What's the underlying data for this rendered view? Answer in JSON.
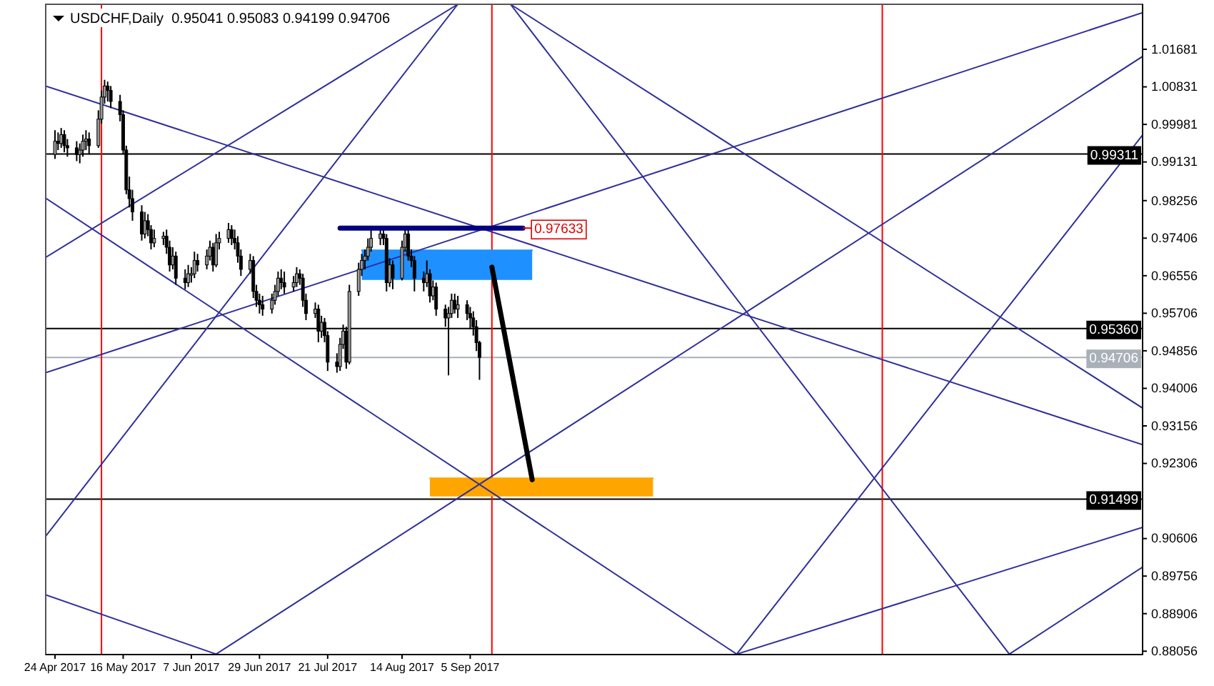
{
  "chart_data": {
    "type": "candlestick",
    "title": "USDCHF,Daily  0.95041 0.95083 0.94199 0.94706",
    "xlim": [
      "2017-04-21",
      "2018-04-10"
    ],
    "xticks": [
      {
        "value": "2017-04-24",
        "label": "24 Apr 2017"
      },
      {
        "value": "2017-05-16",
        "label": "16 May 2017"
      },
      {
        "value": "2017-06-07",
        "label": "7 Jun 2017"
      },
      {
        "value": "2017-06-29",
        "label": "29 Jun 2017"
      },
      {
        "value": "2017-07-21",
        "label": "21 Jul 2017"
      },
      {
        "value": "2017-08-14",
        "label": "14 Aug 2017"
      },
      {
        "value": "2017-09-05",
        "label": "5 Sep 2017"
      }
    ],
    "ylim": [
      0.8798,
      1.027
    ],
    "yticks": [
      1.01681,
      1.00831,
      0.99981,
      0.99131,
      0.98256,
      0.97406,
      0.96556,
      0.95706,
      0.94856,
      0.94006,
      0.93156,
      0.92306,
      0.90606,
      0.89756,
      0.88906,
      0.88056
    ],
    "ref_lines": [
      {
        "axis": "y",
        "value": 0.99311,
        "label": "0.99311",
        "color": "#000000"
      },
      {
        "axis": "y",
        "value": 0.9536,
        "label": "0.95360",
        "color": "#000000"
      },
      {
        "axis": "y",
        "value": 0.94706,
        "label": "0.94706",
        "color": "#a9b0b8"
      },
      {
        "axis": "y",
        "value": 0.91499,
        "label": "0.91499",
        "color": "#000000"
      },
      {
        "axis": "x",
        "value": "2017-05-09",
        "label": null,
        "color": "#ff0000"
      },
      {
        "axis": "x",
        "value": "2017-09-12",
        "label": null,
        "color": "#ff0000"
      },
      {
        "axis": "x",
        "value": "2018-01-16",
        "label": null,
        "color": "#ff0000"
      }
    ],
    "annotations": [
      {
        "text": "0.97633",
        "x": "2017-09-22",
        "y": 0.97633
      }
    ],
    "series": [
      {
        "type": "line",
        "color": "#1e90ff",
        "x": [
          "2017-08-01",
          "2017-09-25"
        ],
        "values": [
          0.9713,
          0.9713
        ],
        "lower": [
          0.9646,
          0.9646
        ],
        "upper": [
          0.9713,
          0.9713
        ]
      },
      {
        "type": "line",
        "color": "#ffa500",
        "x": [
          "2017-08-23",
          "2017-11-03"
        ],
        "values": [
          0.9197,
          0.9197
        ],
        "lower": [
          0.9156,
          0.9156
        ],
        "upper": [
          0.9197,
          0.9197
        ]
      },
      {
        "type": "line",
        "color": "#30309a",
        "x": [
          "2017-04-21",
          "2018-04-10"
        ],
        "values": [
          1.0085,
          0.9273
        ]
      },
      {
        "type": "line",
        "color": "#30309a",
        "x": [
          "2017-04-21",
          "2017-11-30"
        ],
        "values": [
          0.9831,
          0.8799
        ]
      },
      {
        "type": "line",
        "color": "#30309a",
        "x": [
          "2017-04-21",
          "2017-09-01"
        ],
        "values": [
          0.9697,
          1.027
        ]
      },
      {
        "type": "line",
        "color": "#30309a",
        "x": [
          "2017-04-21",
          "2018-04-10"
        ],
        "values": [
          0.9436,
          1.0251
        ]
      },
      {
        "type": "line",
        "color": "#30309a",
        "x": [
          "2017-04-21",
          "2017-09-01"
        ],
        "values": [
          0.9066,
          1.027
        ]
      },
      {
        "type": "line",
        "color": "#30309a",
        "x": [
          "2017-09-18",
          "2018-02-26"
        ],
        "values": [
          1.027,
          0.8799
        ]
      },
      {
        "type": "line",
        "color": "#30309a",
        "x": [
          "2017-09-18",
          "2018-04-10"
        ],
        "values": [
          1.027,
          0.9356
        ]
      },
      {
        "type": "line",
        "color": "#30309a",
        "x": [
          "2017-06-15",
          "2018-04-10"
        ],
        "values": [
          0.8799,
          1.0152
        ]
      },
      {
        "type": "line",
        "color": "#30309a",
        "x": [
          "2017-11-30",
          "2018-04-10"
        ],
        "values": [
          0.8799,
          0.9974
        ]
      },
      {
        "type": "line",
        "color": "#30309a",
        "x": [
          "2017-11-30",
          "2018-04-10"
        ],
        "values": [
          0.8799,
          0.9086
        ]
      },
      {
        "type": "line",
        "color": "#30309a",
        "x": [
          "2018-02-26",
          "2018-04-10"
        ],
        "values": [
          0.8799,
          0.8996
        ]
      },
      {
        "type": "line",
        "color": "#30309a",
        "x": [
          "2017-04-21",
          "2017-06-15"
        ],
        "values": [
          0.8933,
          0.8799
        ]
      },
      {
        "color": "#000000",
        "x": [
          "2017-04-24",
          "2017-04-25",
          "2017-04-26",
          "2017-04-27",
          "2017-04-28",
          "2017-05-01",
          "2017-05-02",
          "2017-05-03",
          "2017-05-04",
          "2017-05-05",
          "2017-05-08",
          "2017-05-09",
          "2017-05-10",
          "2017-05-11",
          "2017-05-12",
          "2017-05-15",
          "2017-05-16",
          "2017-05-17",
          "2017-05-18",
          "2017-05-19",
          "2017-05-22",
          "2017-05-23",
          "2017-05-24",
          "2017-05-25",
          "2017-05-26",
          "2017-05-29",
          "2017-05-30",
          "2017-05-31",
          "2017-06-01",
          "2017-06-02",
          "2017-06-05",
          "2017-06-06",
          "2017-06-07",
          "2017-06-08",
          "2017-06-09",
          "2017-06-12",
          "2017-06-13",
          "2017-06-14",
          "2017-06-15",
          "2017-06-16",
          "2017-06-19",
          "2017-06-20",
          "2017-06-21",
          "2017-06-22",
          "2017-06-23",
          "2017-06-26",
          "2017-06-27",
          "2017-06-28",
          "2017-06-29",
          "2017-06-30",
          "2017-07-03",
          "2017-07-04",
          "2017-07-05",
          "2017-07-06",
          "2017-07-07",
          "2017-07-10",
          "2017-07-11",
          "2017-07-12",
          "2017-07-13",
          "2017-07-14",
          "2017-07-17",
          "2017-07-18",
          "2017-07-19",
          "2017-07-20",
          "2017-07-21",
          "2017-07-24",
          "2017-07-25",
          "2017-07-26",
          "2017-07-27",
          "2017-07-28",
          "2017-07-31",
          "2017-08-01",
          "2017-08-02",
          "2017-08-03",
          "2017-08-04",
          "2017-08-07",
          "2017-08-08",
          "2017-08-09",
          "2017-08-10",
          "2017-08-11",
          "2017-08-14",
          "2017-08-15",
          "2017-08-16",
          "2017-08-17",
          "2017-08-18",
          "2017-08-21",
          "2017-08-22",
          "2017-08-23",
          "2017-08-24",
          "2017-08-25",
          "2017-08-28",
          "2017-08-29",
          "2017-08-30",
          "2017-08-31",
          "2017-09-01",
          "2017-09-04",
          "2017-09-05",
          "2017-09-06",
          "2017-09-07",
          "2017-09-08"
        ],
        "ohlc": [
          [
            0.993,
            0.9985,
            0.992,
            0.996
          ],
          [
            0.996,
            0.998,
            0.994,
            0.9955
          ],
          [
            0.9955,
            0.999,
            0.9945,
            0.9975
          ],
          [
            0.9975,
            0.9985,
            0.9935,
            0.995
          ],
          [
            0.995,
            0.9965,
            0.9925,
            0.9945
          ],
          [
            0.9945,
            0.996,
            0.9915,
            0.993
          ],
          [
            0.993,
            0.9955,
            0.991,
            0.994
          ],
          [
            0.994,
            0.9975,
            0.9925,
            0.996
          ],
          [
            0.996,
            0.9985,
            0.994,
            0.9965
          ],
          [
            0.9965,
            0.998,
            0.993,
            0.995
          ],
          [
            0.995,
            1.003,
            0.9945,
            1.001
          ],
          [
            1.001,
            1.0075,
            1.0,
            1.006
          ],
          [
            1.006,
            1.0099,
            1.0045,
            1.0085
          ],
          [
            1.0085,
            1.0095,
            1.005,
            1.0075
          ],
          [
            1.0075,
            1.0085,
            1.0035,
            1.005
          ],
          [
            1.005,
            1.0065,
            1.0005,
            1.002
          ],
          [
            1.002,
            1.003,
            0.993,
            0.994
          ],
          [
            0.994,
            0.995,
            0.984,
            0.985
          ],
          [
            0.985,
            0.988,
            0.981,
            0.983
          ],
          [
            0.983,
            0.985,
            0.978,
            0.98
          ],
          [
            0.98,
            0.9815,
            0.9735,
            0.975
          ],
          [
            0.975,
            0.98,
            0.974,
            0.978
          ],
          [
            0.978,
            0.9795,
            0.9745,
            0.976
          ],
          [
            0.976,
            0.977,
            0.9715,
            0.973
          ],
          [
            0.973,
            0.976,
            0.972,
            0.974
          ],
          [
            0.974,
            0.9755,
            0.9725,
            0.9745
          ],
          [
            0.9745,
            0.976,
            0.9705,
            0.972
          ],
          [
            0.972,
            0.9735,
            0.9665,
            0.968
          ],
          [
            0.968,
            0.972,
            0.967,
            0.97
          ],
          [
            0.97,
            0.971,
            0.9635,
            0.965
          ],
          [
            0.965,
            0.967,
            0.9625,
            0.964
          ],
          [
            0.964,
            0.968,
            0.963,
            0.966
          ],
          [
            0.966,
            0.9675,
            0.964,
            0.966
          ],
          [
            0.966,
            0.971,
            0.965,
            0.969
          ],
          [
            0.969,
            0.9705,
            0.9665,
            0.968
          ],
          [
            0.968,
            0.9715,
            0.967,
            0.97
          ],
          [
            0.97,
            0.9735,
            0.969,
            0.972
          ],
          [
            0.972,
            0.973,
            0.9665,
            0.968
          ],
          [
            0.968,
            0.975,
            0.9675,
            0.973
          ],
          [
            0.973,
            0.9755,
            0.9715,
            0.974
          ],
          [
            0.974,
            0.9775,
            0.973,
            0.976
          ],
          [
            0.976,
            0.977,
            0.9725,
            0.974
          ],
          [
            0.974,
            0.976,
            0.9715,
            0.973
          ],
          [
            0.973,
            0.9745,
            0.9685,
            0.97
          ],
          [
            0.97,
            0.9715,
            0.9655,
            0.967
          ],
          [
            0.967,
            0.9705,
            0.966,
            0.969
          ],
          [
            0.969,
            0.97,
            0.9605,
            0.962
          ],
          [
            0.962,
            0.9635,
            0.9585,
            0.96
          ],
          [
            0.96,
            0.9615,
            0.957,
            0.959
          ],
          [
            0.959,
            0.961,
            0.9565,
            0.958
          ],
          [
            0.958,
            0.9615,
            0.957,
            0.96
          ],
          [
            0.96,
            0.9635,
            0.959,
            0.962
          ],
          [
            0.962,
            0.9665,
            0.961,
            0.965
          ],
          [
            0.965,
            0.967,
            0.9625,
            0.964
          ],
          [
            0.964,
            0.9665,
            0.9615,
            0.963
          ],
          [
            0.963,
            0.9655,
            0.962,
            0.964
          ],
          [
            0.964,
            0.9675,
            0.963,
            0.966
          ],
          [
            0.966,
            0.967,
            0.9635,
            0.965
          ],
          [
            0.965,
            0.966,
            0.9585,
            0.96
          ],
          [
            0.96,
            0.9615,
            0.9555,
            0.957
          ],
          [
            0.957,
            0.9595,
            0.956,
            0.958
          ],
          [
            0.958,
            0.959,
            0.9505,
            0.953
          ],
          [
            0.953,
            0.9565,
            0.9515,
            0.955
          ],
          [
            0.955,
            0.956,
            0.9505,
            0.952
          ],
          [
            0.952,
            0.953,
            0.944,
            0.946
          ],
          [
            0.946,
            0.948,
            0.9436,
            0.945
          ],
          [
            0.945,
            0.9515,
            0.944,
            0.95
          ],
          [
            0.95,
            0.9545,
            0.949,
            0.953
          ],
          [
            0.953,
            0.954,
            0.9445,
            0.946
          ],
          [
            0.946,
            0.9635,
            0.9455,
            0.962
          ],
          [
            0.962,
            0.9685,
            0.961,
            0.967
          ],
          [
            0.967,
            0.9705,
            0.9655,
            0.969
          ],
          [
            0.969,
            0.9715,
            0.967,
            0.97
          ],
          [
            0.97,
            0.974,
            0.969,
            0.972
          ],
          [
            0.972,
            0.9768,
            0.971,
            0.974
          ],
          [
            0.974,
            0.9765,
            0.9725,
            0.975
          ],
          [
            0.975,
            0.9768,
            0.9725,
            0.974
          ],
          [
            0.974,
            0.975,
            0.962,
            0.964
          ],
          [
            0.964,
            0.9695,
            0.963,
            0.968
          ],
          [
            0.968,
            0.969,
            0.9625,
            0.965
          ],
          [
            0.965,
            0.9735,
            0.9645,
            0.972
          ],
          [
            0.972,
            0.9768,
            0.971,
            0.975
          ],
          [
            0.975,
            0.976,
            0.969,
            0.97
          ],
          [
            0.97,
            0.9715,
            0.9675,
            0.969
          ],
          [
            0.969,
            0.97,
            0.962,
            0.965
          ],
          [
            0.965,
            0.9665,
            0.962,
            0.964
          ],
          [
            0.964,
            0.969,
            0.963,
            0.966
          ],
          [
            0.966,
            0.967,
            0.9595,
            0.961
          ],
          [
            0.961,
            0.9645,
            0.96,
            0.963
          ],
          [
            0.963,
            0.964,
            0.9565,
            0.958
          ],
          [
            0.958,
            0.959,
            0.954,
            0.956
          ],
          [
            0.956,
            0.9585,
            0.943,
            0.957
          ],
          [
            0.957,
            0.9615,
            0.956,
            0.96
          ],
          [
            0.96,
            0.9615,
            0.957,
            0.958
          ],
          [
            0.958,
            0.961,
            0.956,
            0.959
          ],
          [
            0.959,
            0.96,
            0.9555,
            0.957
          ],
          [
            0.957,
            0.9585,
            0.9535,
            0.956
          ],
          [
            0.956,
            0.9575,
            0.952,
            0.954
          ],
          [
            0.954,
            0.9555,
            0.9485,
            0.95041
          ],
          [
            0.95041,
            0.95083,
            0.94199,
            0.94706
          ]
        ]
      },
      {
        "type": "line",
        "color": "#000080",
        "x": [
          "2017-07-25",
          "2017-09-22"
        ],
        "values": [
          0.97633,
          0.97633
        ]
      },
      {
        "type": "line",
        "color": "#000000",
        "x": [
          "2017-09-12",
          "2017-09-25"
        ],
        "values": [
          0.9675,
          0.9194
        ]
      }
    ]
  }
}
